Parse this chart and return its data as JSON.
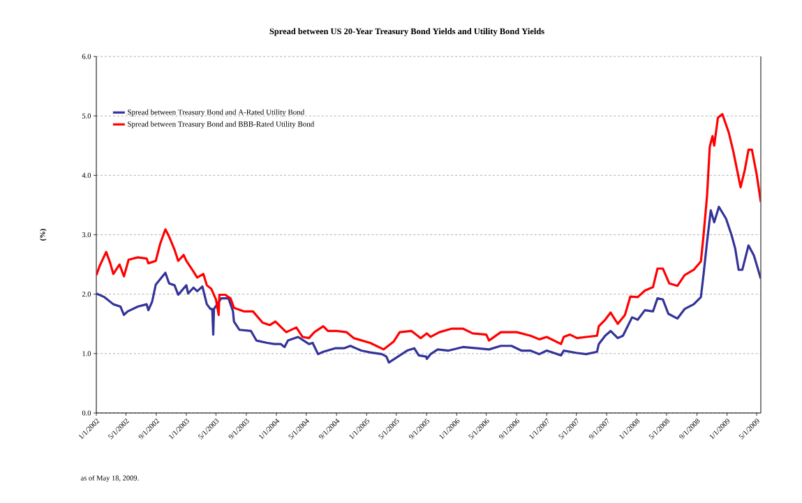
{
  "chart_data": {
    "type": "line",
    "title": "Spread between US 20-Year Treasury Bond Yields and Utility Bond Yields",
    "ylabel": "(%)",
    "annotations": [
      "as of May 18, 2009."
    ],
    "xlim": [
      "2002-01-01",
      "2009-05-18"
    ],
    "ylim": [
      0,
      6
    ],
    "xticks": [
      {
        "value": "2002-01-01",
        "label": "1/1/2002"
      },
      {
        "value": "2002-05-01",
        "label": "5/1/2002"
      },
      {
        "value": "2002-09-01",
        "label": "9/1/2002"
      },
      {
        "value": "2003-01-01",
        "label": "1/1/2003"
      },
      {
        "value": "2003-05-01",
        "label": "5/1/2003"
      },
      {
        "value": "2003-09-01",
        "label": "9/1/2003"
      },
      {
        "value": "2004-01-01",
        "label": "1/1/2004"
      },
      {
        "value": "2004-05-01",
        "label": "5/1/2004"
      },
      {
        "value": "2004-09-01",
        "label": "9/1/2004"
      },
      {
        "value": "2005-01-01",
        "label": "1/1/2005"
      },
      {
        "value": "2005-05-01",
        "label": "5/1/2005"
      },
      {
        "value": "2005-09-01",
        "label": "9/1/2005"
      },
      {
        "value": "2006-01-01",
        "label": "1/1/2006"
      },
      {
        "value": "2006-05-01",
        "label": "5/1/2006"
      },
      {
        "value": "2006-09-01",
        "label": "9/1/2006"
      },
      {
        "value": "2007-01-01",
        "label": "1/1/2007"
      },
      {
        "value": "2007-05-01",
        "label": "5/1/2007"
      },
      {
        "value": "2007-09-01",
        "label": "9/1/2007"
      },
      {
        "value": "2008-01-01",
        "label": "1/1/2008"
      },
      {
        "value": "2008-05-01",
        "label": "5/1/2008"
      },
      {
        "value": "2008-09-01",
        "label": "9/1/2008"
      },
      {
        "value": "2009-01-01",
        "label": "1/1/2009"
      },
      {
        "value": "2009-05-01",
        "label": "5/1/2009"
      }
    ],
    "yticks": [
      {
        "value": 0,
        "label": "0.0"
      },
      {
        "value": 1,
        "label": "1.0"
      },
      {
        "value": 2,
        "label": "2.0"
      },
      {
        "value": 3,
        "label": "3.0"
      },
      {
        "value": 4,
        "label": "4.0"
      },
      {
        "value": 5,
        "label": "5.0"
      },
      {
        "value": 6,
        "label": "6.0"
      }
    ],
    "grid": "y",
    "legend": "top left",
    "line_style": "solid",
    "series": [
      {
        "name": "Spread between Treasury Bond and A-Rated Utility Bond",
        "color": "#333399",
        "x": [
          "2002-01-01",
          "2002-02-03",
          "2002-03-11",
          "2002-04-09",
          "2002-04-23",
          "2002-05-08",
          "2002-06-18",
          "2002-07-24",
          "2002-07-31",
          "2002-08-15",
          "2002-08-30",
          "2002-10-08",
          "2002-10-23",
          "2002-11-14",
          "2002-11-29",
          "2003-01-01",
          "2003-01-08",
          "2003-01-30",
          "2003-02-14",
          "2003-03-07",
          "2003-03-25",
          "2003-04-09",
          "2003-04-16",
          "2003-04-20",
          "2003-04-23",
          "2003-05-12",
          "2003-05-23",
          "2003-06-21",
          "2003-07-09",
          "2003-07-13",
          "2003-08-04",
          "2003-09-20",
          "2003-10-12",
          "2003-11-25",
          "2003-12-24",
          "2004-01-19",
          "2004-02-03",
          "2004-02-17",
          "2004-03-29",
          "2004-05-12",
          "2004-05-27",
          "2004-06-18",
          "2004-07-09",
          "2004-08-26",
          "2004-10-01",
          "2004-10-27",
          "2004-12-10",
          "2005-01-15",
          "2005-03-04",
          "2005-03-22",
          "2005-04-01",
          "2005-05-08",
          "2005-06-14",
          "2005-07-13",
          "2005-07-31",
          "2005-08-30",
          "2005-09-02",
          "2005-09-17",
          "2005-10-16",
          "2005-11-29",
          "2006-01-26",
          "2006-03-22",
          "2006-05-12",
          "2006-06-29",
          "2006-08-11",
          "2006-09-20",
          "2006-10-27",
          "2006-12-02",
          "2007-01-01",
          "2007-02-28",
          "2007-03-11",
          "2007-05-04",
          "2007-06-10",
          "2007-07-24",
          "2007-07-31",
          "2007-08-26",
          "2007-09-17",
          "2007-10-16",
          "2007-11-06",
          "2007-12-13",
          "2008-01-05",
          "2008-02-03",
          "2008-03-07",
          "2008-03-25",
          "2008-04-16",
          "2008-05-08",
          "2008-06-14",
          "2008-07-13",
          "2008-08-19",
          "2008-09-17",
          "2008-09-28",
          "2008-10-12",
          "2008-10-27",
          "2008-11-10",
          "2008-11-29",
          "2008-12-28",
          "2009-01-19",
          "2009-02-03",
          "2009-02-17",
          "2009-03-04",
          "2009-03-29",
          "2009-04-20",
          "2009-05-18"
        ],
        "values": [
          2.01,
          1.95,
          1.83,
          1.79,
          1.65,
          1.71,
          1.79,
          1.83,
          1.73,
          1.87,
          2.16,
          2.36,
          2.18,
          2.15,
          1.99,
          2.15,
          2.01,
          2.11,
          2.05,
          2.13,
          1.83,
          1.75,
          1.75,
          1.32,
          1.75,
          1.87,
          1.93,
          1.93,
          1.71,
          1.54,
          1.4,
          1.38,
          1.22,
          1.18,
          1.16,
          1.16,
          1.11,
          1.22,
          1.28,
          1.16,
          1.18,
          0.99,
          1.03,
          1.09,
          1.09,
          1.13,
          1.05,
          1.02,
          0.99,
          0.95,
          0.85,
          0.95,
          1.05,
          1.09,
          0.97,
          0.95,
          0.91,
          0.99,
          1.07,
          1.05,
          1.11,
          1.09,
          1.07,
          1.13,
          1.13,
          1.05,
          1.05,
          0.99,
          1.05,
          0.97,
          1.05,
          1.01,
          0.99,
          1.03,
          1.16,
          1.3,
          1.38,
          1.26,
          1.3,
          1.61,
          1.57,
          1.73,
          1.71,
          1.93,
          1.91,
          1.67,
          1.59,
          1.75,
          1.83,
          1.95,
          2.34,
          2.88,
          3.41,
          3.21,
          3.47,
          3.27,
          3.0,
          2.77,
          2.41,
          2.41,
          2.82,
          2.65,
          2.26
        ]
      },
      {
        "name": "Spread between Treasury Bond and BBB-Rated Utility Bond",
        "color": "#ff0000",
        "x": [
          "2002-01-01",
          "2002-01-15",
          "2002-02-10",
          "2002-02-25",
          "2002-03-11",
          "2002-04-05",
          "2002-04-23",
          "2002-05-12",
          "2002-06-18",
          "2002-07-24",
          "2002-07-31",
          "2002-08-30",
          "2002-09-17",
          "2002-10-08",
          "2002-10-23",
          "2002-11-14",
          "2002-11-29",
          "2002-12-21",
          "2003-01-01",
          "2003-01-30",
          "2003-02-14",
          "2003-03-11",
          "2003-03-25",
          "2003-04-12",
          "2003-05-01",
          "2003-05-12",
          "2003-05-15",
          "2003-06-07",
          "2003-06-29",
          "2003-07-13",
          "2003-08-22",
          "2003-09-28",
          "2003-11-06",
          "2003-12-06",
          "2003-12-28",
          "2004-02-10",
          "2004-03-22",
          "2004-04-16",
          "2004-05-12",
          "2004-06-03",
          "2004-07-09",
          "2004-07-28",
          "2004-09-02",
          "2004-10-12",
          "2004-11-10",
          "2005-01-15",
          "2005-03-11",
          "2005-04-20",
          "2005-05-15",
          "2005-07-02",
          "2005-08-08",
          "2005-09-02",
          "2005-09-17",
          "2005-10-23",
          "2005-12-13",
          "2006-01-26",
          "2006-03-07",
          "2006-05-01",
          "2006-05-12",
          "2006-06-29",
          "2006-09-02",
          "2006-10-27",
          "2006-12-02",
          "2007-01-01",
          "2007-02-28",
          "2007-03-11",
          "2007-04-05",
          "2007-05-04",
          "2007-06-10",
          "2007-07-24",
          "2007-07-31",
          "2007-08-26",
          "2007-09-17",
          "2007-10-16",
          "2007-11-14",
          "2007-12-06",
          "2008-01-05",
          "2008-02-03",
          "2008-03-07",
          "2008-03-25",
          "2008-04-16",
          "2008-05-12",
          "2008-06-14",
          "2008-07-13",
          "2008-08-19",
          "2008-09-17",
          "2008-09-28",
          "2008-10-12",
          "2008-10-23",
          "2008-11-03",
          "2008-11-10",
          "2008-11-25",
          "2008-12-13",
          "2009-01-08",
          "2009-01-26",
          "2009-02-25",
          "2009-03-14",
          "2009-03-29",
          "2009-04-12",
          "2009-05-01",
          "2009-05-18"
        ],
        "values": [
          2.32,
          2.48,
          2.71,
          2.54,
          2.34,
          2.5,
          2.3,
          2.58,
          2.62,
          2.6,
          2.52,
          2.56,
          2.85,
          3.09,
          2.97,
          2.75,
          2.56,
          2.66,
          2.56,
          2.38,
          2.28,
          2.34,
          2.15,
          2.09,
          1.91,
          1.65,
          1.99,
          1.99,
          1.93,
          1.77,
          1.71,
          1.71,
          1.52,
          1.48,
          1.54,
          1.36,
          1.44,
          1.28,
          1.26,
          1.36,
          1.46,
          1.38,
          1.38,
          1.36,
          1.26,
          1.18,
          1.07,
          1.2,
          1.36,
          1.38,
          1.26,
          1.34,
          1.28,
          1.36,
          1.42,
          1.42,
          1.34,
          1.32,
          1.22,
          1.36,
          1.36,
          1.3,
          1.24,
          1.28,
          1.16,
          1.28,
          1.32,
          1.26,
          1.28,
          1.3,
          1.46,
          1.57,
          1.69,
          1.5,
          1.65,
          1.96,
          1.95,
          2.06,
          2.12,
          2.43,
          2.43,
          2.18,
          2.14,
          2.32,
          2.41,
          2.55,
          3.0,
          3.66,
          4.48,
          4.66,
          4.5,
          4.97,
          5.03,
          4.72,
          4.41,
          3.8,
          4.09,
          4.43,
          4.43,
          4.02,
          3.55
        ]
      }
    ]
  }
}
